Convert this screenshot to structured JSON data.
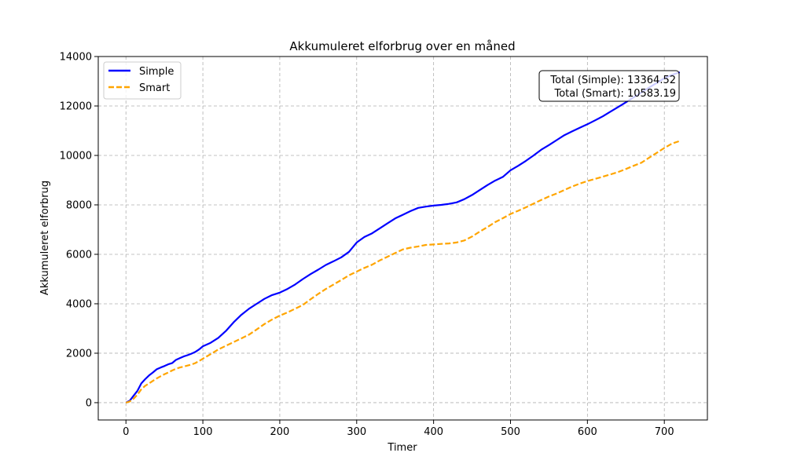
{
  "chart_data": {
    "type": "line",
    "title": "Akkumuleret elforbrug over en måned",
    "xlabel": "Timer",
    "ylabel": "Akkumuleret elforbrug",
    "xlim": [
      -36,
      756
    ],
    "ylim": [
      -700,
      14000
    ],
    "xticks": [
      0,
      100,
      200,
      300,
      400,
      500,
      600,
      700
    ],
    "yticks": [
      0,
      2000,
      4000,
      6000,
      8000,
      10000,
      12000,
      14000
    ],
    "grid": true,
    "legend_position": "top-left",
    "annotation": {
      "line1": "Total (Simple): 13364.52",
      "line2": "Total (Smart): 10583.19",
      "position": "top-right"
    },
    "series": [
      {
        "name": "Simple",
        "color": "#0000ff",
        "style": "solid",
        "x": [
          0,
          5,
          10,
          15,
          20,
          25,
          30,
          35,
          40,
          45,
          50,
          55,
          60,
          65,
          70,
          75,
          80,
          85,
          90,
          95,
          100,
          110,
          120,
          130,
          140,
          150,
          160,
          170,
          180,
          190,
          200,
          210,
          220,
          230,
          240,
          250,
          260,
          270,
          280,
          290,
          300,
          310,
          320,
          330,
          340,
          350,
          360,
          370,
          380,
          390,
          400,
          410,
          420,
          430,
          440,
          450,
          460,
          470,
          480,
          490,
          500,
          510,
          520,
          530,
          540,
          550,
          560,
          570,
          580,
          590,
          600,
          610,
          620,
          630,
          640,
          650,
          660,
          670,
          680,
          690,
          700,
          710,
          720
        ],
        "values": [
          0,
          80,
          280,
          480,
          780,
          950,
          1100,
          1220,
          1350,
          1420,
          1480,
          1550,
          1600,
          1730,
          1800,
          1870,
          1920,
          1980,
          2050,
          2150,
          2280,
          2420,
          2620,
          2900,
          3250,
          3550,
          3800,
          4000,
          4200,
          4350,
          4450,
          4600,
          4780,
          5000,
          5200,
          5380,
          5570,
          5720,
          5880,
          6100,
          6480,
          6700,
          6850,
          7050,
          7250,
          7450,
          7600,
          7750,
          7880,
          7930,
          7970,
          8000,
          8040,
          8100,
          8230,
          8400,
          8600,
          8800,
          8980,
          9130,
          9400,
          9580,
          9780,
          10000,
          10230,
          10420,
          10620,
          10820,
          10970,
          11120,
          11260,
          11420,
          11580,
          11770,
          11960,
          12150,
          12350,
          12540,
          12740,
          12930,
          13120,
          13260,
          13365
        ]
      },
      {
        "name": "Smart",
        "color": "#ffa500",
        "style": "dashed",
        "x": [
          0,
          5,
          10,
          15,
          20,
          25,
          30,
          35,
          40,
          45,
          50,
          55,
          60,
          65,
          70,
          75,
          80,
          85,
          90,
          95,
          100,
          110,
          120,
          130,
          140,
          150,
          160,
          170,
          180,
          190,
          200,
          210,
          220,
          230,
          240,
          250,
          260,
          270,
          280,
          290,
          300,
          310,
          320,
          330,
          340,
          350,
          360,
          370,
          380,
          390,
          400,
          410,
          420,
          430,
          440,
          450,
          460,
          470,
          480,
          490,
          500,
          510,
          520,
          530,
          540,
          550,
          560,
          570,
          580,
          590,
          600,
          610,
          620,
          630,
          640,
          650,
          660,
          670,
          680,
          690,
          700,
          710,
          720
        ],
        "values": [
          0,
          50,
          160,
          330,
          540,
          680,
          780,
          880,
          980,
          1070,
          1150,
          1220,
          1300,
          1370,
          1420,
          1460,
          1500,
          1540,
          1600,
          1680,
          1780,
          1960,
          2150,
          2300,
          2450,
          2600,
          2750,
          2960,
          3180,
          3360,
          3520,
          3650,
          3800,
          3950,
          4180,
          4400,
          4600,
          4780,
          4960,
          5150,
          5300,
          5450,
          5580,
          5750,
          5900,
          6050,
          6200,
          6270,
          6320,
          6380,
          6400,
          6420,
          6440,
          6480,
          6560,
          6720,
          6920,
          7100,
          7300,
          7460,
          7630,
          7760,
          7900,
          8050,
          8200,
          8340,
          8460,
          8600,
          8740,
          8860,
          8960,
          9050,
          9140,
          9230,
          9330,
          9450,
          9580,
          9700,
          9900,
          10100,
          10300,
          10480,
          10583
        ]
      }
    ]
  }
}
